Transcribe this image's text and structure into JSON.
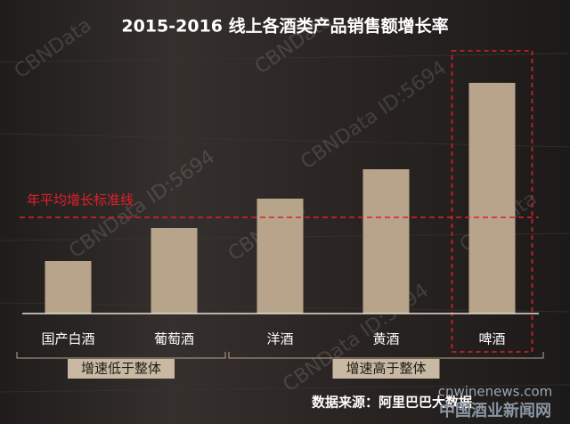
{
  "chart_data": {
    "type": "bar",
    "title": "2015-2016 线上各酒类产品销售额增长率",
    "categories": [
      "国产白酒",
      "葡萄酒",
      "洋酒",
      "黄酒",
      "啤酒"
    ],
    "values": [
      59,
      96,
      129,
      162,
      259
    ],
    "color": "#b8a48b",
    "ylim": [
      0,
      290
    ],
    "reference_line": {
      "value": 108,
      "label": "年平均增长标准线",
      "color": "#e0202a"
    },
    "highlight": "啤酒",
    "groups": [
      {
        "label": "增速低于整体",
        "from": "国产白酒",
        "to": "葡萄酒"
      },
      {
        "label": "增速高于整体",
        "from": "洋酒",
        "to": "啤酒"
      }
    ],
    "source": "数据来源：阿里巴巴大数据"
  },
  "watermarks": [
    "CBNData",
    "CBNData",
    "CBNData ID:5694",
    "CBNData ID:5694",
    "CBNData",
    "CBNData ID:5694",
    "CBNData"
  ],
  "logo": {
    "url": "cnwinenews.com",
    "name": "中国酒业新闻网"
  }
}
